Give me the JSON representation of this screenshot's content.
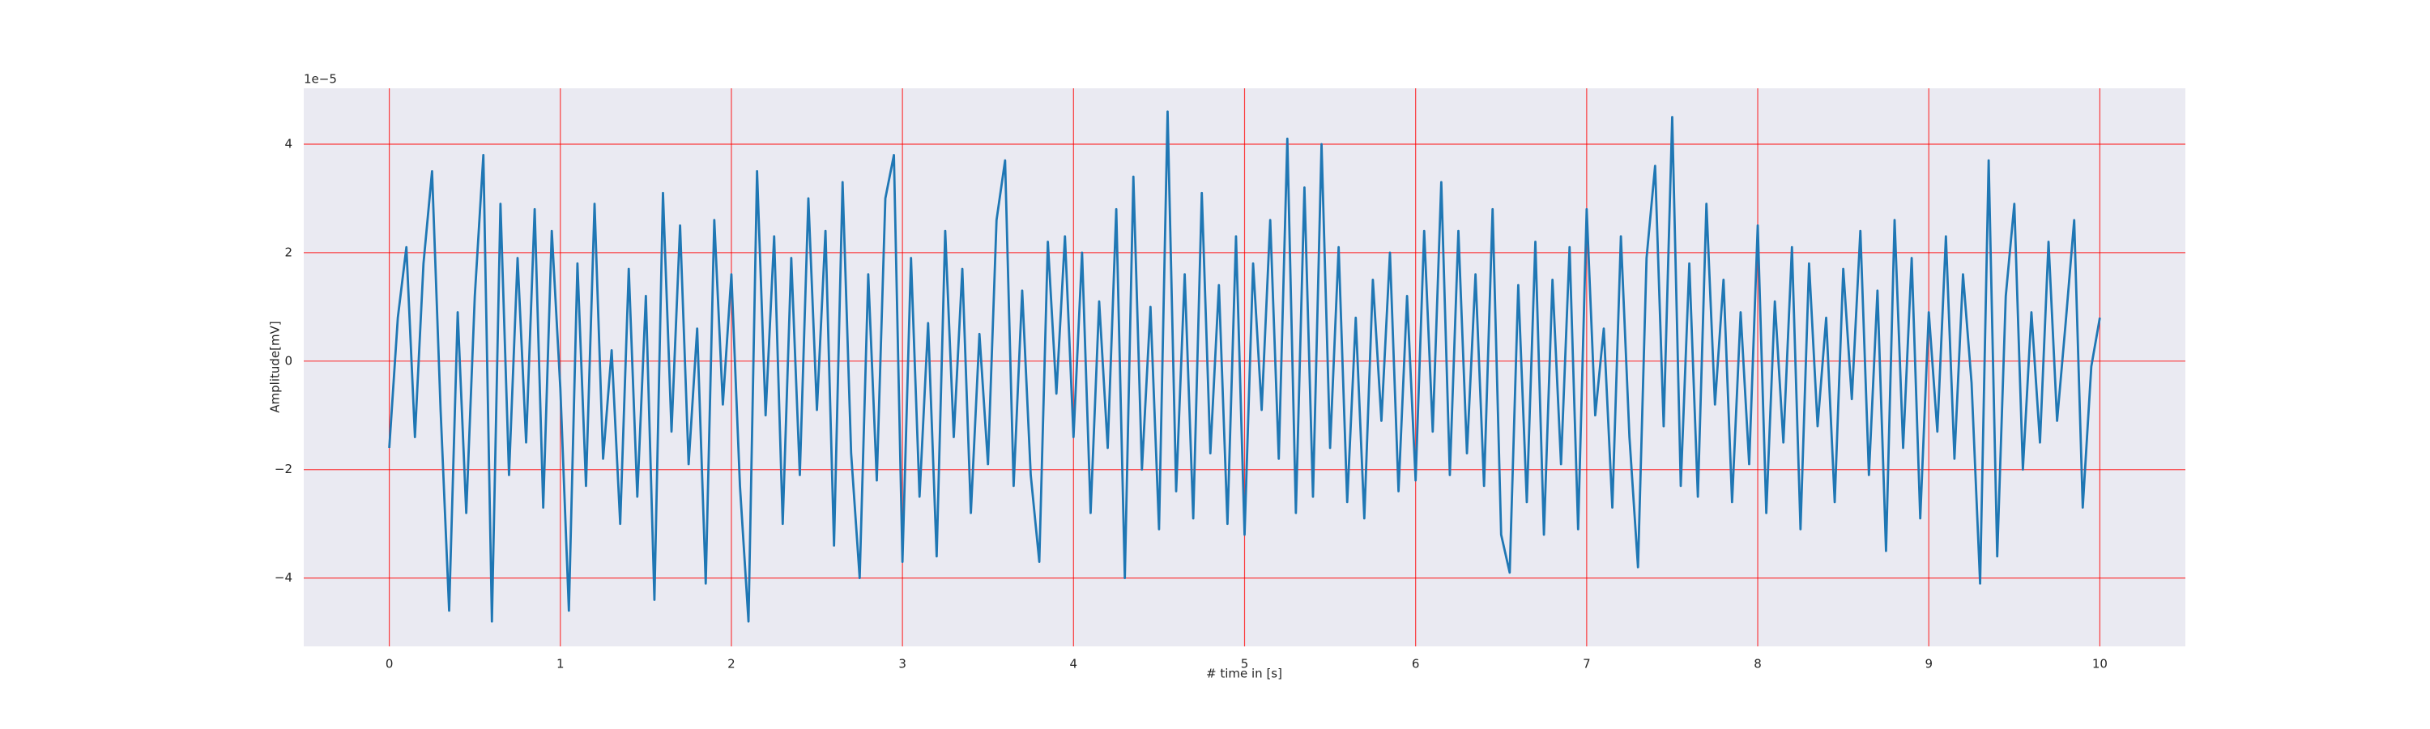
{
  "chart_data": {
    "type": "line",
    "xlabel": "# time in [s]",
    "ylabel": "Amplitude[mV]",
    "y_offset_text": "1e−5",
    "x": [
      0,
      0.05,
      0.1,
      0.15,
      0.2,
      0.25,
      0.3,
      0.35,
      0.4,
      0.45,
      0.5,
      0.55,
      0.6,
      0.65,
      0.7,
      0.75,
      0.8,
      0.85,
      0.9,
      0.95,
      1,
      1.05,
      1.1,
      1.15,
      1.2,
      1.25,
      1.3,
      1.35,
      1.4,
      1.45,
      1.5,
      1.55,
      1.6,
      1.65,
      1.7,
      1.75,
      1.8,
      1.85,
      1.9,
      1.95,
      2,
      2.05,
      2.1,
      2.15,
      2.2,
      2.25,
      2.3,
      2.35,
      2.4,
      2.45,
      2.5,
      2.55,
      2.6,
      2.65,
      2.7,
      2.75,
      2.8,
      2.85,
      2.9,
      2.95,
      3,
      3.05,
      3.1,
      3.15,
      3.2,
      3.25,
      3.3,
      3.35,
      3.4,
      3.45,
      3.5,
      3.55,
      3.6,
      3.65,
      3.7,
      3.75,
      3.8,
      3.85,
      3.9,
      3.95,
      4,
      4.05,
      4.1,
      4.15,
      4.2,
      4.25,
      4.3,
      4.35,
      4.4,
      4.45,
      4.5,
      4.55,
      4.6,
      4.65,
      4.7,
      4.75,
      4.8,
      4.85,
      4.9,
      4.95,
      5,
      5.05,
      5.1,
      5.15,
      5.2,
      5.25,
      5.3,
      5.35,
      5.4,
      5.45,
      5.5,
      5.55,
      5.6,
      5.65,
      5.7,
      5.75,
      5.8,
      5.85,
      5.9,
      5.95,
      6,
      6.05,
      6.1,
      6.15,
      6.2,
      6.25,
      6.3,
      6.35,
      6.4,
      6.45,
      6.5,
      6.55,
      6.6,
      6.65,
      6.7,
      6.75,
      6.8,
      6.85,
      6.9,
      6.95,
      7,
      7.05,
      7.1,
      7.15,
      7.2,
      7.25,
      7.3,
      7.35,
      7.4,
      7.45,
      7.5,
      7.55,
      7.6,
      7.65,
      7.7,
      7.75,
      7.8,
      7.85,
      7.9,
      7.95,
      8,
      8.05,
      8.1,
      8.15,
      8.2,
      8.25,
      8.3,
      8.35,
      8.4,
      8.45,
      8.5,
      8.55,
      8.6,
      8.65,
      8.7,
      8.75,
      8.8,
      8.85,
      8.9,
      8.95,
      9,
      9.05,
      9.1,
      9.15,
      9.2,
      9.25,
      9.3,
      9.35,
      9.4,
      9.45,
      9.5,
      9.55,
      9.6,
      9.65,
      9.7,
      9.75,
      9.8,
      9.85,
      9.9,
      9.95,
      10
    ],
    "series": [
      {
        "color": "#1f77b4",
        "values": [
          -1.6,
          0.8,
          2.1,
          -1.4,
          1.8,
          3.5,
          -0.9,
          -4.6,
          0.9,
          -2.8,
          1.2,
          3.8,
          -4.8,
          2.9,
          -2.1,
          1.9,
          -1.5,
          2.8,
          -2.7,
          2.4,
          -0.5,
          -4.6,
          1.8,
          -2.3,
          2.9,
          -1.8,
          0.2,
          -3.0,
          1.7,
          -2.5,
          1.2,
          -4.4,
          3.1,
          -1.3,
          2.5,
          -1.9,
          0.6,
          -4.1,
          2.6,
          -0.8,
          1.6,
          -2.3,
          -4.8,
          3.5,
          -1.0,
          2.3,
          -3.0,
          1.9,
          -2.1,
          3.0,
          -0.9,
          2.4,
          -3.4,
          3.3,
          -1.7,
          -4.0,
          1.6,
          -2.2,
          3.0,
          3.8,
          -3.7,
          1.9,
          -2.5,
          0.7,
          -3.6,
          2.4,
          -1.4,
          1.7,
          -2.8,
          0.5,
          -1.9,
          2.6,
          3.7,
          -2.3,
          1.3,
          -2.1,
          -3.7,
          2.2,
          -0.6,
          2.3,
          -1.4,
          2.0,
          -2.8,
          1.1,
          -1.6,
          2.8,
          -4.0,
          3.4,
          -2.0,
          1.0,
          -3.1,
          4.6,
          -2.4,
          1.6,
          -2.9,
          3.1,
          -1.7,
          1.4,
          -3.0,
          2.3,
          -3.2,
          1.8,
          -0.9,
          2.6,
          -1.8,
          4.1,
          -2.8,
          3.2,
          -2.5,
          4.0,
          -1.6,
          2.1,
          -2.6,
          0.8,
          -2.9,
          1.5,
          -1.1,
          2.0,
          -2.4,
          1.2,
          -2.2,
          2.4,
          -1.3,
          3.3,
          -2.1,
          2.4,
          -1.7,
          1.6,
          -2.3,
          2.8,
          -3.2,
          -3.9,
          1.4,
          -2.6,
          2.2,
          -3.2,
          1.5,
          -1.9,
          2.1,
          -3.1,
          2.8,
          -1.0,
          0.6,
          -2.7,
          2.3,
          -1.4,
          -3.8,
          1.9,
          3.6,
          -1.2,
          4.5,
          -2.3,
          1.8,
          -2.5,
          2.9,
          -0.8,
          1.5,
          -2.6,
          0.9,
          -1.9,
          2.5,
          -2.8,
          1.1,
          -1.5,
          2.1,
          -3.1,
          1.8,
          -1.2,
          0.8,
          -2.6,
          1.7,
          -0.7,
          2.4,
          -2.1,
          1.3,
          -3.5,
          2.6,
          -1.6,
          1.9,
          -2.9,
          0.9,
          -1.3,
          2.3,
          -1.8,
          1.6,
          -0.4,
          -4.1,
          3.7,
          -3.6,
          1.2,
          2.9,
          -2.0,
          0.9,
          -1.5,
          2.2,
          -1.1,
          0.7,
          2.6,
          -2.7,
          -0.1,
          0.8
        ]
      }
    ],
    "xlim": [
      -0.5,
      10.5
    ],
    "xticks": [
      0,
      1,
      2,
      3,
      4,
      5,
      6,
      7,
      8,
      9,
      10
    ],
    "ylim": [
      -5.26,
      5.03
    ],
    "yticks": [
      {
        "value": -4,
        "label": "−4"
      },
      {
        "value": -2,
        "label": "−2"
      },
      0,
      2,
      4
    ],
    "grid": true,
    "grid_color": "#ff0000",
    "background": "#eaeaf2"
  }
}
